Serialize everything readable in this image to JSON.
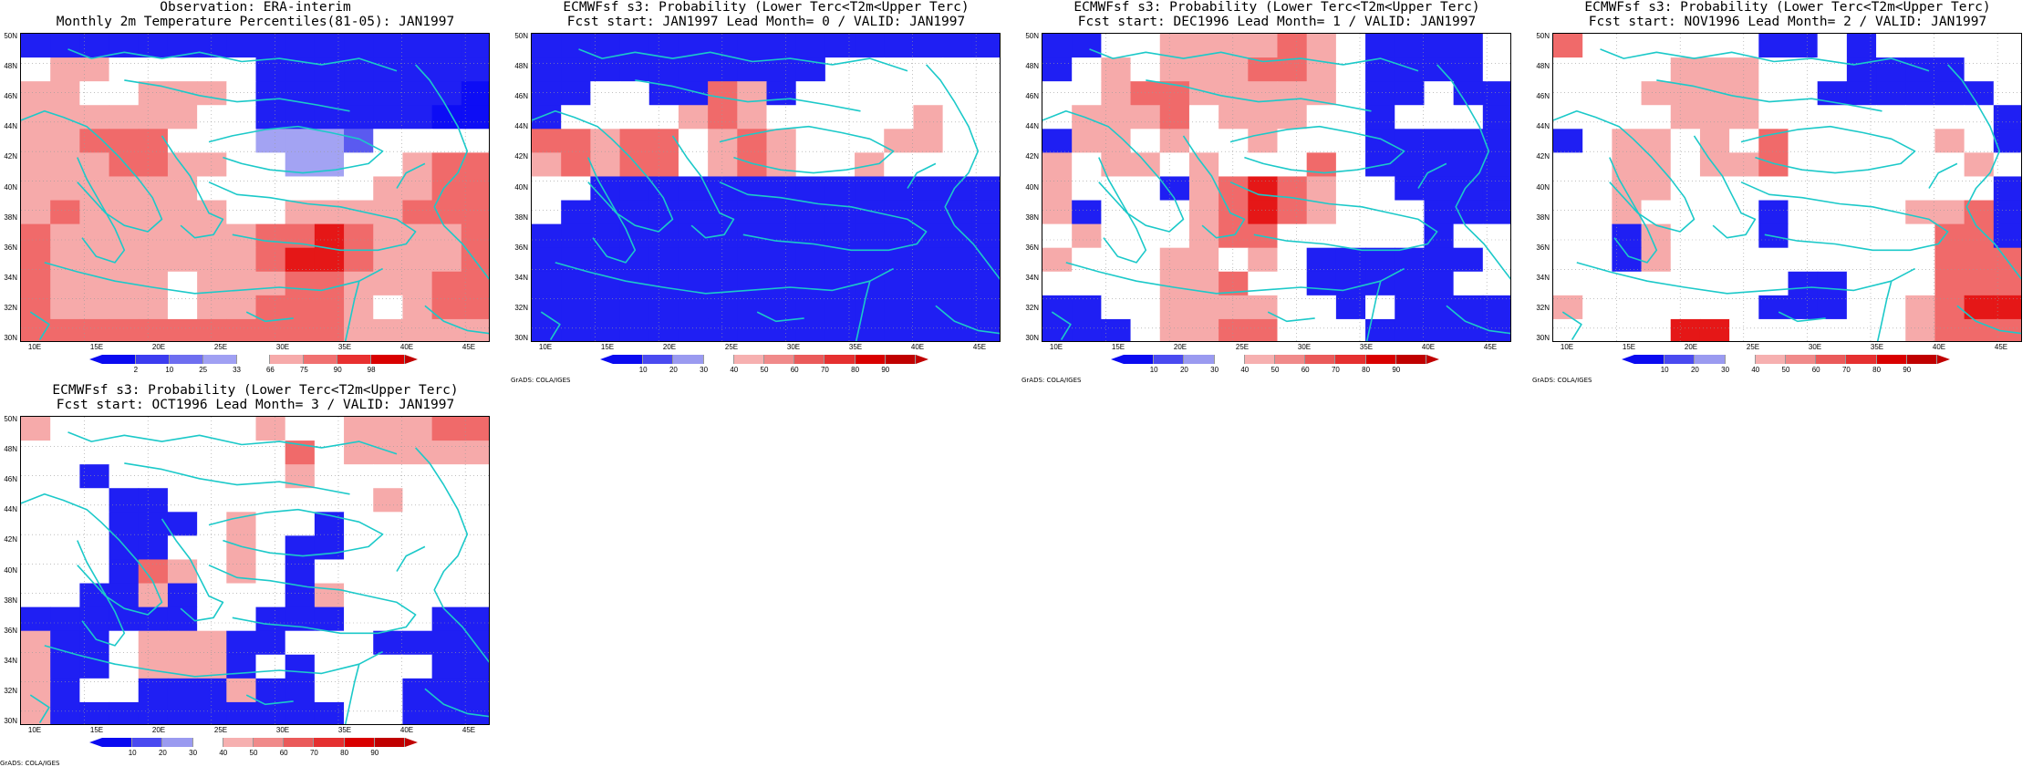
{
  "panels": [
    {
      "title1": "Observation: ERA-interim",
      "title2": "Monthly 2m Temperature Percentiles(81-05): JAN1997",
      "type": "obs",
      "colorbar": [
        "2",
        "10",
        "25",
        "33",
        "66",
        "75",
        "90",
        "98"
      ]
    },
    {
      "title1": "ECMWFsf s3: Probability (Lower Terc<T2m<Upper Terc)",
      "title2": "Fcst start: JAN1997   Lead Month= 0 / VALID: JAN1997",
      "type": "fcst",
      "colorbar": [
        "10",
        "20",
        "30",
        "40",
        "50",
        "60",
        "70",
        "80",
        "90"
      ]
    },
    {
      "title1": "ECMWFsf s3: Probability (Lower Terc<T2m<Upper Terc)",
      "title2": "Fcst start: DEC1996   Lead Month= 1 / VALID: JAN1997",
      "type": "fcst",
      "colorbar": [
        "10",
        "20",
        "30",
        "40",
        "50",
        "60",
        "70",
        "80",
        "90"
      ]
    },
    {
      "title1": "ECMWFsf s3: Probability (Lower Terc<T2m<Upper Terc)",
      "title2": "Fcst start: NOV1996   Lead Month= 2 / VALID: JAN1997",
      "type": "fcst",
      "colorbar": [
        "10",
        "20",
        "30",
        "40",
        "50",
        "60",
        "70",
        "80",
        "90"
      ]
    },
    {
      "title1": "ECMWFsf s3: Probability (Lower Terc<T2m<Upper Terc)",
      "title2": "Fcst start: OCT1996   Lead Month= 3 / VALID: JAN1997",
      "type": "fcst",
      "colorbar": [
        "10",
        "20",
        "30",
        "40",
        "50",
        "60",
        "70",
        "80",
        "90"
      ]
    }
  ],
  "lat_labels": [
    "50N",
    "48N",
    "46N",
    "44N",
    "42N",
    "40N",
    "38N",
    "36N",
    "34N",
    "32N",
    "30N"
  ],
  "lon_labels": [
    "10E",
    "15E",
    "20E",
    "25E",
    "30E",
    "35E",
    "40E",
    "45E"
  ],
  "credit": "GrADS: COLA/IGES",
  "colors": {
    "blue_strong": "#1a1af5",
    "blue_mid": "#5c5cf2",
    "blue_light": "#9a9af0",
    "white": "#ffffff",
    "pink_light": "#f7b3b3",
    "pink_mid": "#f27f7f",
    "red_mid": "#ee4f4f",
    "red_strong": "#e51b1b",
    "coast": "#1cc9c9"
  },
  "chart_data": [
    {
      "type": "heatmap",
      "grid": [
        [
          1,
          1,
          1,
          1,
          1,
          1,
          1,
          1,
          1,
          1,
          1,
          1,
          1,
          1,
          1,
          1
        ],
        [
          4,
          5,
          5,
          4,
          4,
          4,
          4,
          4,
          1,
          1,
          1,
          1,
          1,
          1,
          1,
          1
        ],
        [
          5,
          5,
          4,
          4,
          5,
          5,
          5,
          4,
          1,
          1,
          1,
          1,
          1,
          1,
          1,
          0
        ],
        [
          5,
          5,
          5,
          5,
          5,
          5,
          4,
          4,
          1,
          1,
          1,
          1,
          1,
          1,
          0,
          0
        ],
        [
          5,
          5,
          6,
          6,
          6,
          4,
          4,
          4,
          3,
          3,
          3,
          2,
          4,
          4,
          4,
          4
        ],
        [
          5,
          5,
          5,
          6,
          6,
          5,
          5,
          4,
          4,
          3,
          3,
          4,
          4,
          5,
          6,
          6
        ],
        [
          5,
          5,
          5,
          5,
          5,
          5,
          4,
          4,
          4,
          4,
          4,
          4,
          5,
          5,
          6,
          6
        ],
        [
          5,
          6,
          5,
          5,
          5,
          5,
          5,
          4,
          4,
          5,
          5,
          5,
          5,
          6,
          6,
          6
        ],
        [
          6,
          5,
          5,
          5,
          5,
          5,
          5,
          5,
          6,
          6,
          7,
          6,
          5,
          5,
          5,
          6
        ],
        [
          6,
          5,
          5,
          5,
          5,
          5,
          5,
          5,
          6,
          7,
          7,
          6,
          5,
          5,
          5,
          6
        ],
        [
          6,
          5,
          5,
          5,
          5,
          4,
          5,
          5,
          5,
          6,
          6,
          5,
          5,
          5,
          6,
          6
        ],
        [
          6,
          5,
          5,
          5,
          5,
          4,
          5,
          5,
          6,
          6,
          6,
          5,
          4,
          5,
          6,
          6
        ],
        [
          6,
          6,
          6,
          6,
          6,
          6,
          6,
          6,
          6,
          6,
          6,
          5,
          5,
          5,
          5,
          5
        ]
      ]
    },
    {
      "type": "heatmap",
      "grid": [
        [
          1,
          1,
          1,
          1,
          1,
          1,
          1,
          1,
          1,
          1,
          1,
          1,
          1,
          1,
          1,
          1
        ],
        [
          1,
          1,
          1,
          1,
          1,
          1,
          1,
          1,
          1,
          1,
          4,
          4,
          4,
          4,
          4,
          4
        ],
        [
          1,
          1,
          4,
          4,
          1,
          1,
          6,
          5,
          1,
          4,
          4,
          4,
          4,
          4,
          4,
          4
        ],
        [
          1,
          4,
          4,
          4,
          4,
          5,
          6,
          5,
          4,
          4,
          4,
          4,
          4,
          5,
          4,
          4
        ],
        [
          6,
          6,
          5,
          6,
          6,
          4,
          5,
          6,
          5,
          4,
          4,
          4,
          5,
          5,
          4,
          4
        ],
        [
          5,
          6,
          5,
          6,
          6,
          4,
          5,
          6,
          5,
          4,
          4,
          5,
          4,
          4,
          4,
          4
        ],
        [
          4,
          4,
          1,
          1,
          1,
          1,
          1,
          1,
          1,
          1,
          1,
          1,
          1,
          1,
          1,
          1
        ],
        [
          4,
          1,
          1,
          1,
          1,
          1,
          1,
          1,
          1,
          1,
          1,
          1,
          1,
          1,
          1,
          1
        ],
        [
          1,
          1,
          1,
          1,
          1,
          1,
          1,
          1,
          1,
          1,
          1,
          1,
          1,
          1,
          1,
          1
        ],
        [
          1,
          1,
          1,
          1,
          1,
          1,
          1,
          1,
          1,
          1,
          1,
          1,
          1,
          1,
          1,
          1
        ],
        [
          1,
          1,
          1,
          1,
          1,
          1,
          1,
          1,
          1,
          1,
          1,
          1,
          1,
          1,
          1,
          1
        ],
        [
          1,
          1,
          1,
          1,
          1,
          1,
          1,
          1,
          1,
          1,
          1,
          1,
          1,
          1,
          1,
          1
        ],
        [
          1,
          1,
          1,
          1,
          1,
          1,
          1,
          1,
          1,
          1,
          1,
          1,
          1,
          1,
          1,
          1
        ]
      ]
    },
    {
      "type": "heatmap",
      "grid": [
        [
          1,
          1,
          4,
          4,
          5,
          5,
          5,
          5,
          6,
          5,
          4,
          1,
          1,
          1,
          1,
          4
        ],
        [
          1,
          4,
          5,
          4,
          5,
          5,
          5,
          6,
          6,
          5,
          4,
          1,
          1,
          1,
          1,
          4
        ],
        [
          4,
          4,
          5,
          6,
          6,
          5,
          5,
          5,
          5,
          5,
          4,
          1,
          1,
          4,
          1,
          1
        ],
        [
          4,
          5,
          5,
          5,
          6,
          4,
          5,
          5,
          5,
          4,
          4,
          1,
          4,
          4,
          4,
          1
        ],
        [
          1,
          5,
          5,
          4,
          5,
          4,
          4,
          5,
          4,
          4,
          4,
          1,
          1,
          1,
          1,
          1
        ],
        [
          5,
          4,
          5,
          5,
          4,
          5,
          4,
          4,
          4,
          6,
          4,
          1,
          1,
          1,
          1,
          1
        ],
        [
          5,
          4,
          4,
          4,
          1,
          5,
          6,
          7,
          6,
          5,
          4,
          4,
          1,
          1,
          1,
          1
        ],
        [
          5,
          1,
          4,
          4,
          4,
          5,
          6,
          7,
          6,
          5,
          4,
          4,
          4,
          1,
          1,
          1
        ],
        [
          4,
          5,
          4,
          4,
          4,
          5,
          6,
          6,
          4,
          4,
          4,
          4,
          4,
          1,
          4,
          4
        ],
        [
          5,
          4,
          4,
          4,
          5,
          5,
          4,
          5,
          4,
          1,
          1,
          1,
          1,
          1,
          1,
          4
        ],
        [
          4,
          4,
          4,
          4,
          5,
          5,
          6,
          4,
          4,
          1,
          1,
          1,
          1,
          1,
          4,
          4
        ],
        [
          1,
          1,
          4,
          4,
          5,
          5,
          5,
          5,
          4,
          4,
          1,
          4,
          1,
          1,
          1,
          1
        ],
        [
          1,
          1,
          1,
          4,
          5,
          5,
          6,
          6,
          4,
          4,
          4,
          1,
          1,
          1,
          1,
          1
        ]
      ]
    },
    {
      "type": "heatmap",
      "grid": [
        [
          6,
          4,
          4,
          4,
          4,
          4,
          4,
          1,
          1,
          4,
          1,
          4,
          4,
          4,
          4,
          4
        ],
        [
          4,
          4,
          4,
          4,
          5,
          5,
          5,
          4,
          4,
          4,
          1,
          1,
          1,
          1,
          4,
          4
        ],
        [
          4,
          4,
          4,
          5,
          5,
          5,
          5,
          4,
          4,
          1,
          1,
          1,
          1,
          1,
          1,
          4
        ],
        [
          4,
          4,
          4,
          4,
          5,
          5,
          5,
          4,
          4,
          4,
          4,
          4,
          4,
          4,
          4,
          1
        ],
        [
          1,
          4,
          5,
          5,
          4,
          5,
          4,
          6,
          4,
          4,
          4,
          4,
          4,
          5,
          4,
          1
        ],
        [
          4,
          4,
          5,
          5,
          4,
          5,
          5,
          6,
          4,
          4,
          4,
          4,
          4,
          4,
          5,
          4
        ],
        [
          4,
          4,
          5,
          5,
          4,
          4,
          4,
          4,
          4,
          4,
          4,
          4,
          4,
          4,
          4,
          1
        ],
        [
          4,
          4,
          5,
          4,
          4,
          4,
          4,
          1,
          4,
          4,
          4,
          4,
          5,
          5,
          6,
          1
        ],
        [
          4,
          4,
          1,
          5,
          4,
          4,
          4,
          1,
          4,
          4,
          4,
          4,
          4,
          6,
          6,
          1
        ],
        [
          4,
          4,
          1,
          5,
          4,
          4,
          4,
          4,
          4,
          4,
          4,
          4,
          4,
          6,
          6,
          6
        ],
        [
          4,
          4,
          4,
          4,
          4,
          4,
          4,
          4,
          1,
          1,
          4,
          4,
          4,
          6,
          6,
          6
        ],
        [
          5,
          4,
          4,
          4,
          4,
          4,
          4,
          1,
          1,
          1,
          4,
          4,
          5,
          6,
          7,
          7
        ],
        [
          4,
          4,
          4,
          4,
          7,
          7,
          4,
          4,
          4,
          4,
          4,
          4,
          5,
          6,
          6,
          6
        ]
      ]
    },
    {
      "type": "heatmap",
      "grid": [
        [
          5,
          4,
          4,
          4,
          4,
          4,
          4,
          4,
          5,
          4,
          4,
          5,
          5,
          5,
          6,
          6
        ],
        [
          4,
          4,
          4,
          4,
          4,
          4,
          4,
          4,
          4,
          6,
          4,
          5,
          5,
          5,
          5,
          5
        ],
        [
          4,
          4,
          1,
          4,
          4,
          4,
          4,
          4,
          4,
          5,
          4,
          4,
          4,
          4,
          4,
          4
        ],
        [
          4,
          4,
          4,
          1,
          1,
          4,
          4,
          4,
          4,
          4,
          4,
          4,
          5,
          4,
          4,
          4
        ],
        [
          4,
          4,
          4,
          1,
          1,
          1,
          4,
          5,
          4,
          4,
          1,
          4,
          4,
          4,
          4,
          4
        ],
        [
          4,
          4,
          4,
          1,
          1,
          4,
          4,
          5,
          4,
          1,
          1,
          4,
          4,
          4,
          4,
          4
        ],
        [
          4,
          4,
          4,
          1,
          6,
          5,
          4,
          5,
          4,
          1,
          4,
          4,
          4,
          4,
          4,
          4
        ],
        [
          4,
          4,
          1,
          1,
          5,
          1,
          4,
          4,
          4,
          1,
          5,
          4,
          4,
          4,
          4,
          4
        ],
        [
          1,
          1,
          1,
          1,
          1,
          1,
          4,
          4,
          1,
          1,
          1,
          4,
          4,
          4,
          1,
          1
        ],
        [
          5,
          1,
          1,
          4,
          5,
          5,
          5,
          1,
          1,
          4,
          4,
          4,
          1,
          1,
          1,
          1
        ],
        [
          5,
          1,
          1,
          4,
          5,
          5,
          5,
          1,
          4,
          1,
          4,
          4,
          4,
          4,
          1,
          1
        ],
        [
          5,
          1,
          4,
          4,
          1,
          1,
          1,
          5,
          1,
          1,
          4,
          4,
          4,
          1,
          1,
          1
        ],
        [
          5,
          1,
          1,
          1,
          1,
          1,
          1,
          1,
          1,
          1,
          1,
          4,
          4,
          1,
          1,
          1
        ]
      ]
    }
  ]
}
